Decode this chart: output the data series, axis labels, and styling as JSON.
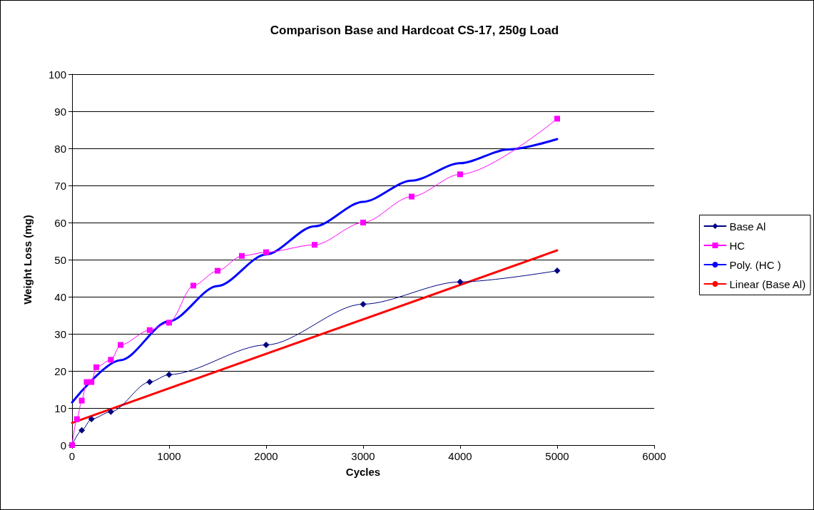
{
  "chart_data": {
    "type": "line",
    "title": "Comparison Base and Hardcoat CS-17, 250g Load",
    "xlabel": "Cycles",
    "ylabel": "Weight Loss (mg)",
    "xlim": [
      0,
      6000
    ],
    "xticks": [
      0,
      1000,
      2000,
      3000,
      4000,
      5000,
      6000
    ],
    "ylim": [
      0,
      100
    ],
    "yticks": [
      0,
      10,
      20,
      30,
      40,
      50,
      60,
      70,
      80,
      90,
      100
    ],
    "grid": "y",
    "legend": "right",
    "series": [
      {
        "name": "Base Al",
        "color": "#000080",
        "marker": "diamond",
        "x": [
          0,
          100,
          200,
          400,
          800,
          1000,
          2000,
          3000,
          4000,
          5000
        ],
        "values": [
          0,
          4,
          7,
          9,
          17,
          19,
          27,
          38,
          44,
          47
        ]
      },
      {
        "name": "HC",
        "color": "#ff00ff",
        "marker": "square",
        "x": [
          0,
          50,
          100,
          150,
          200,
          250,
          400,
          500,
          800,
          1000,
          1250,
          1500,
          1750,
          2000,
          2500,
          3000,
          3500,
          4000,
          5000
        ],
        "values": [
          0,
          7,
          12,
          17,
          17,
          21,
          23,
          27,
          31,
          33,
          43,
          47,
          51,
          52,
          54,
          60,
          67,
          73,
          88
        ]
      },
      {
        "name": "Poly. (HC )",
        "color": "#0000ff",
        "marker": "none",
        "x": [
          0,
          500,
          1000,
          1500,
          2000,
          2500,
          3000,
          3500,
          4000,
          4500,
          5000
        ],
        "values": [
          11.5,
          22.9,
          33.4,
          42.9,
          51.4,
          59,
          65.6,
          71.3,
          76,
          79.7,
          82.5
        ]
      },
      {
        "name": "Linear (Base Al)",
        "color": "#ff0000",
        "marker": "none",
        "x": [
          0,
          5000
        ],
        "values": [
          6,
          52.5
        ]
      }
    ]
  }
}
